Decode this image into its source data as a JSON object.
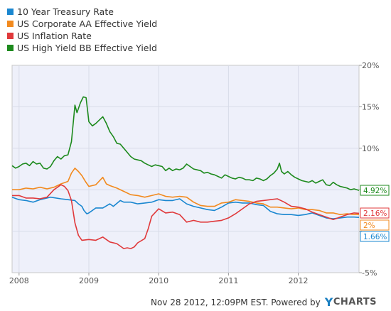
{
  "legend": [
    {
      "label": "10 Year Treasury Rate",
      "color": "#1a87d0"
    },
    {
      "label": "US Corporate AA Effective Yield",
      "color": "#f28a1e"
    },
    {
      "label": "US Inflation Rate",
      "color": "#e0393b"
    },
    {
      "label": "US High Yield BB Effective Yield",
      "color": "#1d8a1d"
    }
  ],
  "footer": {
    "text": "Nov 28 2012, 12:09PM EST.  Powered by",
    "logo_y": "Y",
    "logo_rest": "CHARTS"
  },
  "chart_data": {
    "type": "line",
    "xlim": [
      2007.9,
      2012.87
    ],
    "ylim": [
      -5,
      20
    ],
    "y_ticks": [
      -5,
      0,
      5,
      10,
      15,
      20
    ],
    "y_tick_labels": [
      "-5%",
      "",
      "",
      "10%",
      "15%",
      "20%"
    ],
    "x_ticks": [
      2008,
      2009,
      2010,
      2011,
      2012
    ],
    "x_tick_labels": [
      "2008",
      "2009",
      "2010",
      "2011",
      "2012"
    ],
    "end_labels": [
      "4.92%",
      "2.16%",
      "2%",
      "1.66%"
    ],
    "series": [
      {
        "name": "10 Year Treasury Rate",
        "color": "#1a87d0",
        "points": [
          [
            2007.9,
            4.1
          ],
          [
            2008.0,
            3.8
          ],
          [
            2008.1,
            3.7
          ],
          [
            2008.2,
            3.5
          ],
          [
            2008.3,
            3.8
          ],
          [
            2008.45,
            4.1
          ],
          [
            2008.6,
            3.9
          ],
          [
            2008.7,
            3.8
          ],
          [
            2008.8,
            3.7
          ],
          [
            2008.85,
            3.3
          ],
          [
            2008.9,
            3.0
          ],
          [
            2008.93,
            2.5
          ],
          [
            2008.97,
            2.1
          ],
          [
            2009.0,
            2.2
          ],
          [
            2009.1,
            2.8
          ],
          [
            2009.2,
            2.8
          ],
          [
            2009.3,
            3.3
          ],
          [
            2009.35,
            3.0
          ],
          [
            2009.45,
            3.7
          ],
          [
            2009.5,
            3.5
          ],
          [
            2009.6,
            3.5
          ],
          [
            2009.7,
            3.3
          ],
          [
            2009.8,
            3.4
          ],
          [
            2009.9,
            3.5
          ],
          [
            2010.0,
            3.8
          ],
          [
            2010.1,
            3.7
          ],
          [
            2010.2,
            3.7
          ],
          [
            2010.3,
            3.9
          ],
          [
            2010.4,
            3.3
          ],
          [
            2010.5,
            3.0
          ],
          [
            2010.6,
            2.8
          ],
          [
            2010.7,
            2.6
          ],
          [
            2010.8,
            2.5
          ],
          [
            2010.9,
            2.9
          ],
          [
            2011.0,
            3.4
          ],
          [
            2011.1,
            3.5
          ],
          [
            2011.2,
            3.4
          ],
          [
            2011.3,
            3.4
          ],
          [
            2011.4,
            3.2
          ],
          [
            2011.5,
            3.1
          ],
          [
            2011.6,
            2.4
          ],
          [
            2011.7,
            2.1
          ],
          [
            2011.8,
            2.0
          ],
          [
            2011.9,
            2.0
          ],
          [
            2012.0,
            1.9
          ],
          [
            2012.1,
            2.0
          ],
          [
            2012.2,
            2.2
          ],
          [
            2012.3,
            1.9
          ],
          [
            2012.4,
            1.6
          ],
          [
            2012.5,
            1.5
          ],
          [
            2012.6,
            1.6
          ],
          [
            2012.7,
            1.7
          ],
          [
            2012.8,
            1.7
          ],
          [
            2012.87,
            1.66
          ]
        ]
      },
      {
        "name": "US Corporate AA Effective Yield",
        "color": "#f28a1e",
        "points": [
          [
            2007.9,
            5.0
          ],
          [
            2008.0,
            5.0
          ],
          [
            2008.1,
            5.2
          ],
          [
            2008.2,
            5.1
          ],
          [
            2008.3,
            5.3
          ],
          [
            2008.4,
            5.1
          ],
          [
            2008.5,
            5.3
          ],
          [
            2008.6,
            5.7
          ],
          [
            2008.7,
            6.0
          ],
          [
            2008.75,
            7.0
          ],
          [
            2008.8,
            7.6
          ],
          [
            2008.85,
            7.2
          ],
          [
            2008.9,
            6.7
          ],
          [
            2008.95,
            6.0
          ],
          [
            2009.0,
            5.4
          ],
          [
            2009.1,
            5.6
          ],
          [
            2009.2,
            6.5
          ],
          [
            2009.25,
            5.7
          ],
          [
            2009.3,
            5.5
          ],
          [
            2009.4,
            5.2
          ],
          [
            2009.5,
            4.8
          ],
          [
            2009.6,
            4.4
          ],
          [
            2009.7,
            4.3
          ],
          [
            2009.8,
            4.1
          ],
          [
            2009.9,
            4.3
          ],
          [
            2010.0,
            4.5
          ],
          [
            2010.1,
            4.2
          ],
          [
            2010.2,
            4.1
          ],
          [
            2010.3,
            4.2
          ],
          [
            2010.4,
            4.1
          ],
          [
            2010.5,
            3.5
          ],
          [
            2010.6,
            3.1
          ],
          [
            2010.7,
            3.0
          ],
          [
            2010.8,
            3.0
          ],
          [
            2010.9,
            3.4
          ],
          [
            2011.0,
            3.5
          ],
          [
            2011.1,
            3.8
          ],
          [
            2011.2,
            3.7
          ],
          [
            2011.3,
            3.6
          ],
          [
            2011.4,
            3.4
          ],
          [
            2011.5,
            3.3
          ],
          [
            2011.6,
            2.9
          ],
          [
            2011.7,
            2.9
          ],
          [
            2011.8,
            2.8
          ],
          [
            2011.9,
            2.7
          ],
          [
            2012.0,
            2.8
          ],
          [
            2012.1,
            2.6
          ],
          [
            2012.2,
            2.6
          ],
          [
            2012.3,
            2.5
          ],
          [
            2012.4,
            2.2
          ],
          [
            2012.5,
            2.2
          ],
          [
            2012.6,
            2.0
          ],
          [
            2012.7,
            2.1
          ],
          [
            2012.8,
            2.0
          ],
          [
            2012.87,
            2.0
          ]
        ]
      },
      {
        "name": "US Inflation Rate",
        "color": "#e0393b",
        "points": [
          [
            2007.9,
            4.3
          ],
          [
            2008.0,
            4.3
          ],
          [
            2008.1,
            4.0
          ],
          [
            2008.2,
            4.0
          ],
          [
            2008.3,
            3.9
          ],
          [
            2008.4,
            4.1
          ],
          [
            2008.5,
            5.0
          ],
          [
            2008.6,
            5.6
          ],
          [
            2008.65,
            5.4
          ],
          [
            2008.7,
            4.9
          ],
          [
            2008.75,
            3.7
          ],
          [
            2008.8,
            1.0
          ],
          [
            2008.85,
            -0.5
          ],
          [
            2008.9,
            -1.1
          ],
          [
            2009.0,
            -1.0
          ],
          [
            2009.1,
            -1.1
          ],
          [
            2009.2,
            -0.7
          ],
          [
            2009.3,
            -1.3
          ],
          [
            2009.4,
            -1.5
          ],
          [
            2009.5,
            -2.1
          ],
          [
            2009.55,
            -2.0
          ],
          [
            2009.6,
            -2.1
          ],
          [
            2009.65,
            -1.9
          ],
          [
            2009.7,
            -1.4
          ],
          [
            2009.8,
            -0.9
          ],
          [
            2009.85,
            0.3
          ],
          [
            2009.9,
            1.8
          ],
          [
            2010.0,
            2.7
          ],
          [
            2010.1,
            2.2
          ],
          [
            2010.2,
            2.3
          ],
          [
            2010.3,
            2.0
          ],
          [
            2010.4,
            1.1
          ],
          [
            2010.5,
            1.3
          ],
          [
            2010.6,
            1.1
          ],
          [
            2010.7,
            1.1
          ],
          [
            2010.8,
            1.2
          ],
          [
            2010.9,
            1.3
          ],
          [
            2011.0,
            1.6
          ],
          [
            2011.1,
            2.1
          ],
          [
            2011.2,
            2.7
          ],
          [
            2011.3,
            3.3
          ],
          [
            2011.4,
            3.6
          ],
          [
            2011.5,
            3.7
          ],
          [
            2011.6,
            3.8
          ],
          [
            2011.7,
            3.9
          ],
          [
            2011.8,
            3.5
          ],
          [
            2011.9,
            3.0
          ],
          [
            2012.0,
            2.9
          ],
          [
            2012.1,
            2.7
          ],
          [
            2012.2,
            2.3
          ],
          [
            2012.3,
            2.0
          ],
          [
            2012.4,
            1.7
          ],
          [
            2012.5,
            1.4
          ],
          [
            2012.6,
            1.7
          ],
          [
            2012.7,
            2.0
          ],
          [
            2012.8,
            2.2
          ],
          [
            2012.87,
            2.16
          ]
        ]
      },
      {
        "name": "US High Yield BB Effective Yield",
        "color": "#1d8a1d",
        "points": [
          [
            2007.9,
            7.9
          ],
          [
            2007.95,
            7.6
          ],
          [
            2008.0,
            7.8
          ],
          [
            2008.05,
            8.1
          ],
          [
            2008.1,
            8.2
          ],
          [
            2008.15,
            7.9
          ],
          [
            2008.2,
            8.4
          ],
          [
            2008.25,
            8.1
          ],
          [
            2008.3,
            8.2
          ],
          [
            2008.35,
            7.6
          ],
          [
            2008.4,
            7.5
          ],
          [
            2008.45,
            7.8
          ],
          [
            2008.5,
            8.5
          ],
          [
            2008.55,
            9.0
          ],
          [
            2008.6,
            8.7
          ],
          [
            2008.65,
            9.1
          ],
          [
            2008.7,
            9.2
          ],
          [
            2008.75,
            10.8
          ],
          [
            2008.8,
            15.2
          ],
          [
            2008.83,
            14.3
          ],
          [
            2008.88,
            15.5
          ],
          [
            2008.92,
            16.2
          ],
          [
            2008.96,
            16.1
          ],
          [
            2009.0,
            13.2
          ],
          [
            2009.05,
            12.7
          ],
          [
            2009.1,
            13.0
          ],
          [
            2009.15,
            13.4
          ],
          [
            2009.2,
            13.8
          ],
          [
            2009.25,
            13.0
          ],
          [
            2009.3,
            12.0
          ],
          [
            2009.35,
            11.4
          ],
          [
            2009.4,
            10.6
          ],
          [
            2009.45,
            10.5
          ],
          [
            2009.5,
            10.0
          ],
          [
            2009.55,
            9.5
          ],
          [
            2009.6,
            9.0
          ],
          [
            2009.65,
            8.7
          ],
          [
            2009.7,
            8.6
          ],
          [
            2009.75,
            8.5
          ],
          [
            2009.8,
            8.2
          ],
          [
            2009.85,
            8.0
          ],
          [
            2009.9,
            7.8
          ],
          [
            2009.95,
            8.0
          ],
          [
            2010.0,
            7.9
          ],
          [
            2010.05,
            7.8
          ],
          [
            2010.1,
            7.3
          ],
          [
            2010.15,
            7.6
          ],
          [
            2010.2,
            7.3
          ],
          [
            2010.25,
            7.5
          ],
          [
            2010.3,
            7.4
          ],
          [
            2010.35,
            7.6
          ],
          [
            2010.4,
            8.1
          ],
          [
            2010.45,
            7.8
          ],
          [
            2010.5,
            7.5
          ],
          [
            2010.55,
            7.4
          ],
          [
            2010.6,
            7.3
          ],
          [
            2010.65,
            7.0
          ],
          [
            2010.7,
            7.1
          ],
          [
            2010.75,
            6.9
          ],
          [
            2010.8,
            6.8
          ],
          [
            2010.85,
            6.6
          ],
          [
            2010.9,
            6.4
          ],
          [
            2010.95,
            6.8
          ],
          [
            2011.0,
            6.6
          ],
          [
            2011.05,
            6.4
          ],
          [
            2011.1,
            6.3
          ],
          [
            2011.15,
            6.5
          ],
          [
            2011.2,
            6.4
          ],
          [
            2011.25,
            6.2
          ],
          [
            2011.3,
            6.2
          ],
          [
            2011.35,
            6.1
          ],
          [
            2011.4,
            6.4
          ],
          [
            2011.45,
            6.3
          ],
          [
            2011.5,
            6.1
          ],
          [
            2011.55,
            6.3
          ],
          [
            2011.6,
            6.7
          ],
          [
            2011.65,
            7.0
          ],
          [
            2011.7,
            7.5
          ],
          [
            2011.73,
            8.2
          ],
          [
            2011.76,
            7.2
          ],
          [
            2011.8,
            6.9
          ],
          [
            2011.85,
            7.2
          ],
          [
            2011.9,
            6.8
          ],
          [
            2011.95,
            6.5
          ],
          [
            2012.0,
            6.3
          ],
          [
            2012.05,
            6.1
          ],
          [
            2012.1,
            6.0
          ],
          [
            2012.15,
            5.9
          ],
          [
            2012.2,
            6.1
          ],
          [
            2012.25,
            5.8
          ],
          [
            2012.3,
            6.0
          ],
          [
            2012.35,
            6.2
          ],
          [
            2012.4,
            5.6
          ],
          [
            2012.45,
            5.5
          ],
          [
            2012.5,
            5.9
          ],
          [
            2012.55,
            5.6
          ],
          [
            2012.6,
            5.4
          ],
          [
            2012.65,
            5.3
          ],
          [
            2012.7,
            5.2
          ],
          [
            2012.75,
            5.0
          ],
          [
            2012.8,
            5.1
          ],
          [
            2012.87,
            4.92
          ]
        ]
      }
    ]
  }
}
